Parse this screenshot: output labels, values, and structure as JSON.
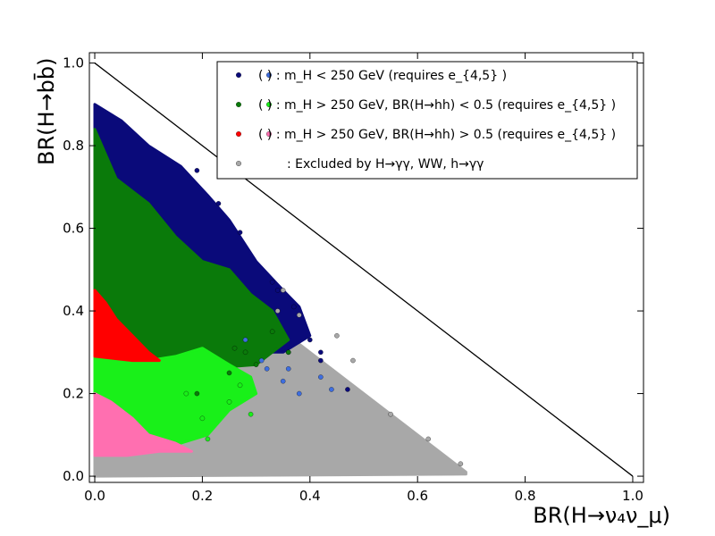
{
  "chart_data": {
    "type": "scatter",
    "xlabel": "BR(H→ν₄ν_μ)",
    "ylabel": "BR(H→bb̄)",
    "xlim": [
      -0.01,
      1.02
    ],
    "ylim": [
      -0.015,
      1.025
    ],
    "xticks": [
      "0.0",
      "0.2",
      "0.4",
      "0.6",
      "0.8",
      "1.0"
    ],
    "yticks": [
      "0.0",
      "0.2",
      "0.4",
      "0.6",
      "0.8",
      "1.0"
    ],
    "legend_position": "top-right",
    "reference_line": {
      "x": [
        0.0,
        1.0
      ],
      "y": [
        1.0,
        0.0
      ],
      "color": "#000000"
    },
    "series": [
      {
        "name": "( ) : m_H < 250 GeV (requires e_{4,5} )",
        "color": "#0a0a7a",
        "alt_color": "#3e6ee0"
      },
      {
        "name": "( ) : m_H > 250 GeV, BR(H→hh) < 0.5 (requires e_{4,5} )",
        "color": "#0a7a0a",
        "alt_color": "#19f019"
      },
      {
        "name": "( ) : m_H > 250 GeV, BR(H→hh) > 0.5 (requires e_{4,5} )",
        "color": "#ff0000",
        "alt_color": "#ff6fb0"
      },
      {
        "name": ": Excluded by H→γγ, WW, h→γγ",
        "color": "#a8a8a8"
      }
    ],
    "regions": [
      {
        "series": 3,
        "color": "#a8a8a8",
        "polygon": [
          [
            0,
            0.0
          ],
          [
            0,
            0.22
          ],
          [
            0.1,
            0.27
          ],
          [
            0.2,
            0.36
          ],
          [
            0.3,
            0.36
          ],
          [
            0.36,
            0.34
          ],
          [
            0.42,
            0.28
          ],
          [
            0.5,
            0.2
          ],
          [
            0.6,
            0.1
          ],
          [
            0.69,
            0.01
          ],
          [
            0.69,
            0.005
          ]
        ]
      },
      {
        "series": 1,
        "color": "#0a0a7a",
        "polygon": [
          [
            0,
            0.9
          ],
          [
            0.05,
            0.86
          ],
          [
            0.1,
            0.8
          ],
          [
            0.16,
            0.75
          ],
          [
            0.21,
            0.68
          ],
          [
            0.25,
            0.62
          ],
          [
            0.3,
            0.52
          ],
          [
            0.35,
            0.45
          ],
          [
            0.38,
            0.41
          ],
          [
            0.4,
            0.34
          ],
          [
            0.35,
            0.3
          ],
          [
            0.3,
            0.3
          ],
          [
            0.2,
            0.32
          ],
          [
            0.1,
            0.3
          ],
          [
            0,
            0.3
          ]
        ]
      },
      {
        "series": 2,
        "color": "#0a7a0a",
        "polygon": [
          [
            0,
            0.84
          ],
          [
            0.04,
            0.72
          ],
          [
            0.1,
            0.66
          ],
          [
            0.15,
            0.58
          ],
          [
            0.2,
            0.52
          ],
          [
            0.25,
            0.5
          ],
          [
            0.29,
            0.44
          ],
          [
            0.33,
            0.4
          ],
          [
            0.36,
            0.33
          ],
          [
            0.3,
            0.27
          ],
          [
            0.2,
            0.26
          ],
          [
            0.1,
            0.29
          ],
          [
            0,
            0.29
          ]
        ]
      },
      {
        "series": 2,
        "color": "#19f019",
        "polygon": [
          [
            0,
            0.29
          ],
          [
            0.05,
            0.285
          ],
          [
            0.1,
            0.28
          ],
          [
            0.15,
            0.29
          ],
          [
            0.2,
            0.31
          ],
          [
            0.25,
            0.27
          ],
          [
            0.29,
            0.24
          ],
          [
            0.3,
            0.2
          ],
          [
            0.25,
            0.16
          ],
          [
            0.21,
            0.1
          ],
          [
            0.16,
            0.08
          ],
          [
            0.1,
            0.09
          ],
          [
            0,
            0.17
          ]
        ]
      },
      {
        "series": 2,
        "color": "#ff0000",
        "polygon": [
          [
            0,
            0.45
          ],
          [
            0.02,
            0.42
          ],
          [
            0.04,
            0.38
          ],
          [
            0.07,
            0.34
          ],
          [
            0.1,
            0.3
          ],
          [
            0.12,
            0.28
          ],
          [
            0.07,
            0.28
          ],
          [
            0,
            0.29
          ]
        ]
      },
      {
        "series": 2,
        "color": "#ff6fb0",
        "polygon": [
          [
            0,
            0.2
          ],
          [
            0.03,
            0.18
          ],
          [
            0.07,
            0.14
          ],
          [
            0.1,
            0.1
          ],
          [
            0.15,
            0.08
          ],
          [
            0.18,
            0.06
          ],
          [
            0.12,
            0.06
          ],
          [
            0.06,
            0.05
          ],
          [
            0,
            0.05
          ]
        ]
      }
    ],
    "scatter_clusters": [
      {
        "color": "#0a0a7a",
        "points": [
          [
            0.19,
            0.74
          ],
          [
            0.23,
            0.66
          ],
          [
            0.27,
            0.59
          ],
          [
            0.33,
            0.47
          ],
          [
            0.34,
            0.45
          ],
          [
            0.37,
            0.41
          ],
          [
            0.4,
            0.33
          ],
          [
            0.42,
            0.28
          ],
          [
            0.47,
            0.21
          ],
          [
            0.42,
            0.3
          ],
          [
            0.36,
            0.3
          ]
        ]
      },
      {
        "color": "#3e6ee0",
        "points": [
          [
            0.28,
            0.33
          ],
          [
            0.32,
            0.26
          ],
          [
            0.35,
            0.23
          ],
          [
            0.38,
            0.2
          ],
          [
            0.42,
            0.24
          ],
          [
            0.44,
            0.21
          ],
          [
            0.31,
            0.28
          ],
          [
            0.36,
            0.26
          ]
        ]
      },
      {
        "color": "#0a7a0a",
        "points": [
          [
            0.28,
            0.3
          ],
          [
            0.36,
            0.3
          ],
          [
            0.3,
            0.27
          ],
          [
            0.25,
            0.25
          ],
          [
            0.19,
            0.2
          ],
          [
            0.33,
            0.35
          ],
          [
            0.26,
            0.31
          ]
        ]
      },
      {
        "color": "#19f019",
        "points": [
          [
            0.21,
            0.09
          ],
          [
            0.25,
            0.18
          ],
          [
            0.29,
            0.15
          ],
          [
            0.2,
            0.14
          ],
          [
            0.17,
            0.2
          ],
          [
            0.27,
            0.22
          ]
        ]
      },
      {
        "color": "#a8a8a8",
        "points": [
          [
            0.34,
            0.4
          ],
          [
            0.35,
            0.45
          ],
          [
            0.38,
            0.39
          ],
          [
            0.45,
            0.34
          ],
          [
            0.48,
            0.28
          ],
          [
            0.55,
            0.15
          ],
          [
            0.62,
            0.09
          ],
          [
            0.68,
            0.03
          ]
        ]
      }
    ]
  }
}
